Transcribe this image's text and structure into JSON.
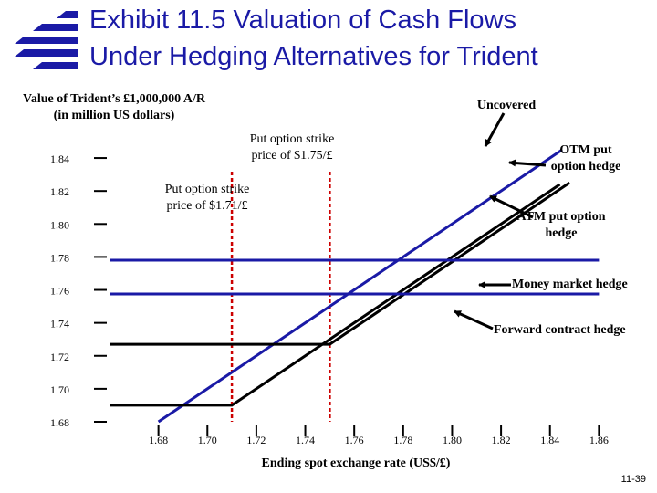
{
  "title": {
    "line1": "Exhibit 11.5  Valuation of Cash Flows",
    "line2": "Under Hedging Alternatives for Trident"
  },
  "logo": {
    "icon": "book-stripes-logo",
    "color": "#1a1aa6"
  },
  "page_number": "11-39",
  "chart_data": {
    "type": "line",
    "ylabel": [
      "Value of Trident’s £1,000,000 A/R",
      "(in million US dollars)"
    ],
    "xlabel": "Ending spot exchange rate (US$/£)",
    "xlim": [
      1.66,
      1.88
    ],
    "ylim": [
      1.68,
      1.85
    ],
    "xticks": [
      1.68,
      1.7,
      1.72,
      1.74,
      1.76,
      1.78,
      1.8,
      1.82,
      1.84,
      1.86
    ],
    "xtick_labels": [
      "1.68",
      "1.70",
      "1.72",
      "1.74",
      "1.76",
      "1.78",
      "1.80",
      "1.82",
      "1.84",
      "1.86"
    ],
    "yticks": [
      1.68,
      1.7,
      1.72,
      1.74,
      1.76,
      1.78,
      1.8,
      1.82,
      1.84
    ],
    "ytick_labels": [
      "1.68",
      "1.70",
      "1.72",
      "1.74",
      "1.76",
      "1.78",
      "1.80",
      "1.82",
      "1.84"
    ],
    "series": [
      {
        "name": "Uncovered",
        "color": "#1a1aa6",
        "points": [
          [
            1.68,
            1.68
          ],
          [
            1.845,
            1.845
          ]
        ]
      },
      {
        "name": "OTM put option hedge",
        "color": "#000000",
        "points": [
          [
            1.66,
            1.727
          ],
          [
            1.75,
            1.727
          ],
          [
            1.848,
            1.825
          ]
        ]
      },
      {
        "name": "ATM put option hedge",
        "color": "#000000",
        "points": [
          [
            1.66,
            1.69
          ],
          [
            1.71,
            1.69
          ],
          [
            1.844,
            1.824
          ]
        ]
      },
      {
        "name": "Money market hedge",
        "color": "#1a1aa6",
        "points": [
          [
            1.66,
            1.778
          ],
          [
            1.86,
            1.778
          ]
        ]
      },
      {
        "name": "Forward contract hedge",
        "color": "#1a1aa6",
        "points": [
          [
            1.66,
            1.7575
          ],
          [
            1.86,
            1.7575
          ]
        ]
      }
    ],
    "vlines": [
      {
        "x": 1.71,
        "color": "#cc0000",
        "label": [
          "Put option strike",
          "price of $1.71/£"
        ]
      },
      {
        "x": 1.75,
        "color": "#cc0000",
        "label": [
          "Put option strike",
          "price of $1.75/£"
        ]
      }
    ],
    "grid": false,
    "legend": "callouts"
  }
}
